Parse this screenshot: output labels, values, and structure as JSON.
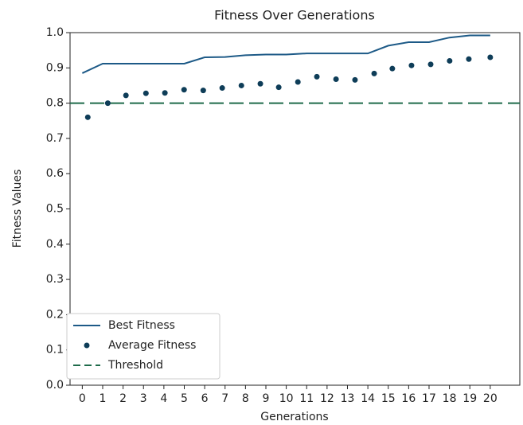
{
  "chart_data": {
    "type": "line",
    "title": "Fitness Over Generations",
    "x_label": "Generations",
    "y_label": "Fitness Values",
    "xlim": [
      -0.6,
      21.45
    ],
    "ylim": [
      0,
      1.0
    ],
    "xticks": [
      0,
      1,
      2,
      3,
      4,
      5,
      6,
      7,
      8,
      9,
      10,
      11,
      12,
      13,
      14,
      15,
      16,
      17,
      18,
      19,
      20
    ],
    "yticks": [
      {
        "value": 0,
        "label": "0.0"
      },
      0.1,
      0.2,
      0.3,
      0.4,
      0.5,
      0.6,
      0.7,
      0.8,
      0.9,
      {
        "value": 1.0,
        "label": "1.0"
      }
    ],
    "legend": "lower left",
    "series": [
      {
        "name": "Best Fitness",
        "style": "line",
        "color": "#1d5a87",
        "x": [
          0,
          1,
          2,
          3,
          4,
          5,
          6,
          7,
          8,
          9,
          10,
          11,
          12,
          13,
          14,
          15,
          16,
          17,
          18,
          19,
          20
        ],
        "values": [
          0.885,
          0.912,
          0.912,
          0.912,
          0.912,
          0.912,
          0.93,
          0.931,
          0.936,
          0.938,
          0.938,
          0.941,
          0.941,
          0.941,
          0.941,
          0.963,
          0.973,
          0.973,
          0.986,
          0.992,
          0.992
        ]
      },
      {
        "name": "Average Fitness",
        "style": "scatter",
        "color": "#0e3d58",
        "x": [
          0.27,
          1.25,
          2.14,
          3.12,
          4.05,
          4.99,
          5.93,
          6.86,
          7.8,
          8.73,
          9.63,
          10.57,
          11.5,
          12.44,
          13.37,
          14.31,
          15.2,
          16.14,
          17.08,
          18.01,
          18.95,
          20.0
        ],
        "values": [
          0.76,
          0.8,
          0.822,
          0.828,
          0.829,
          0.838,
          0.836,
          0.843,
          0.85,
          0.855,
          0.845,
          0.86,
          0.875,
          0.868,
          0.866,
          0.884,
          0.898,
          0.907,
          0.91,
          0.92,
          0.925,
          0.93
        ]
      }
    ],
    "threshold": {
      "name": "Threshold",
      "value": 0.8,
      "color": "#1e6b4a"
    }
  }
}
